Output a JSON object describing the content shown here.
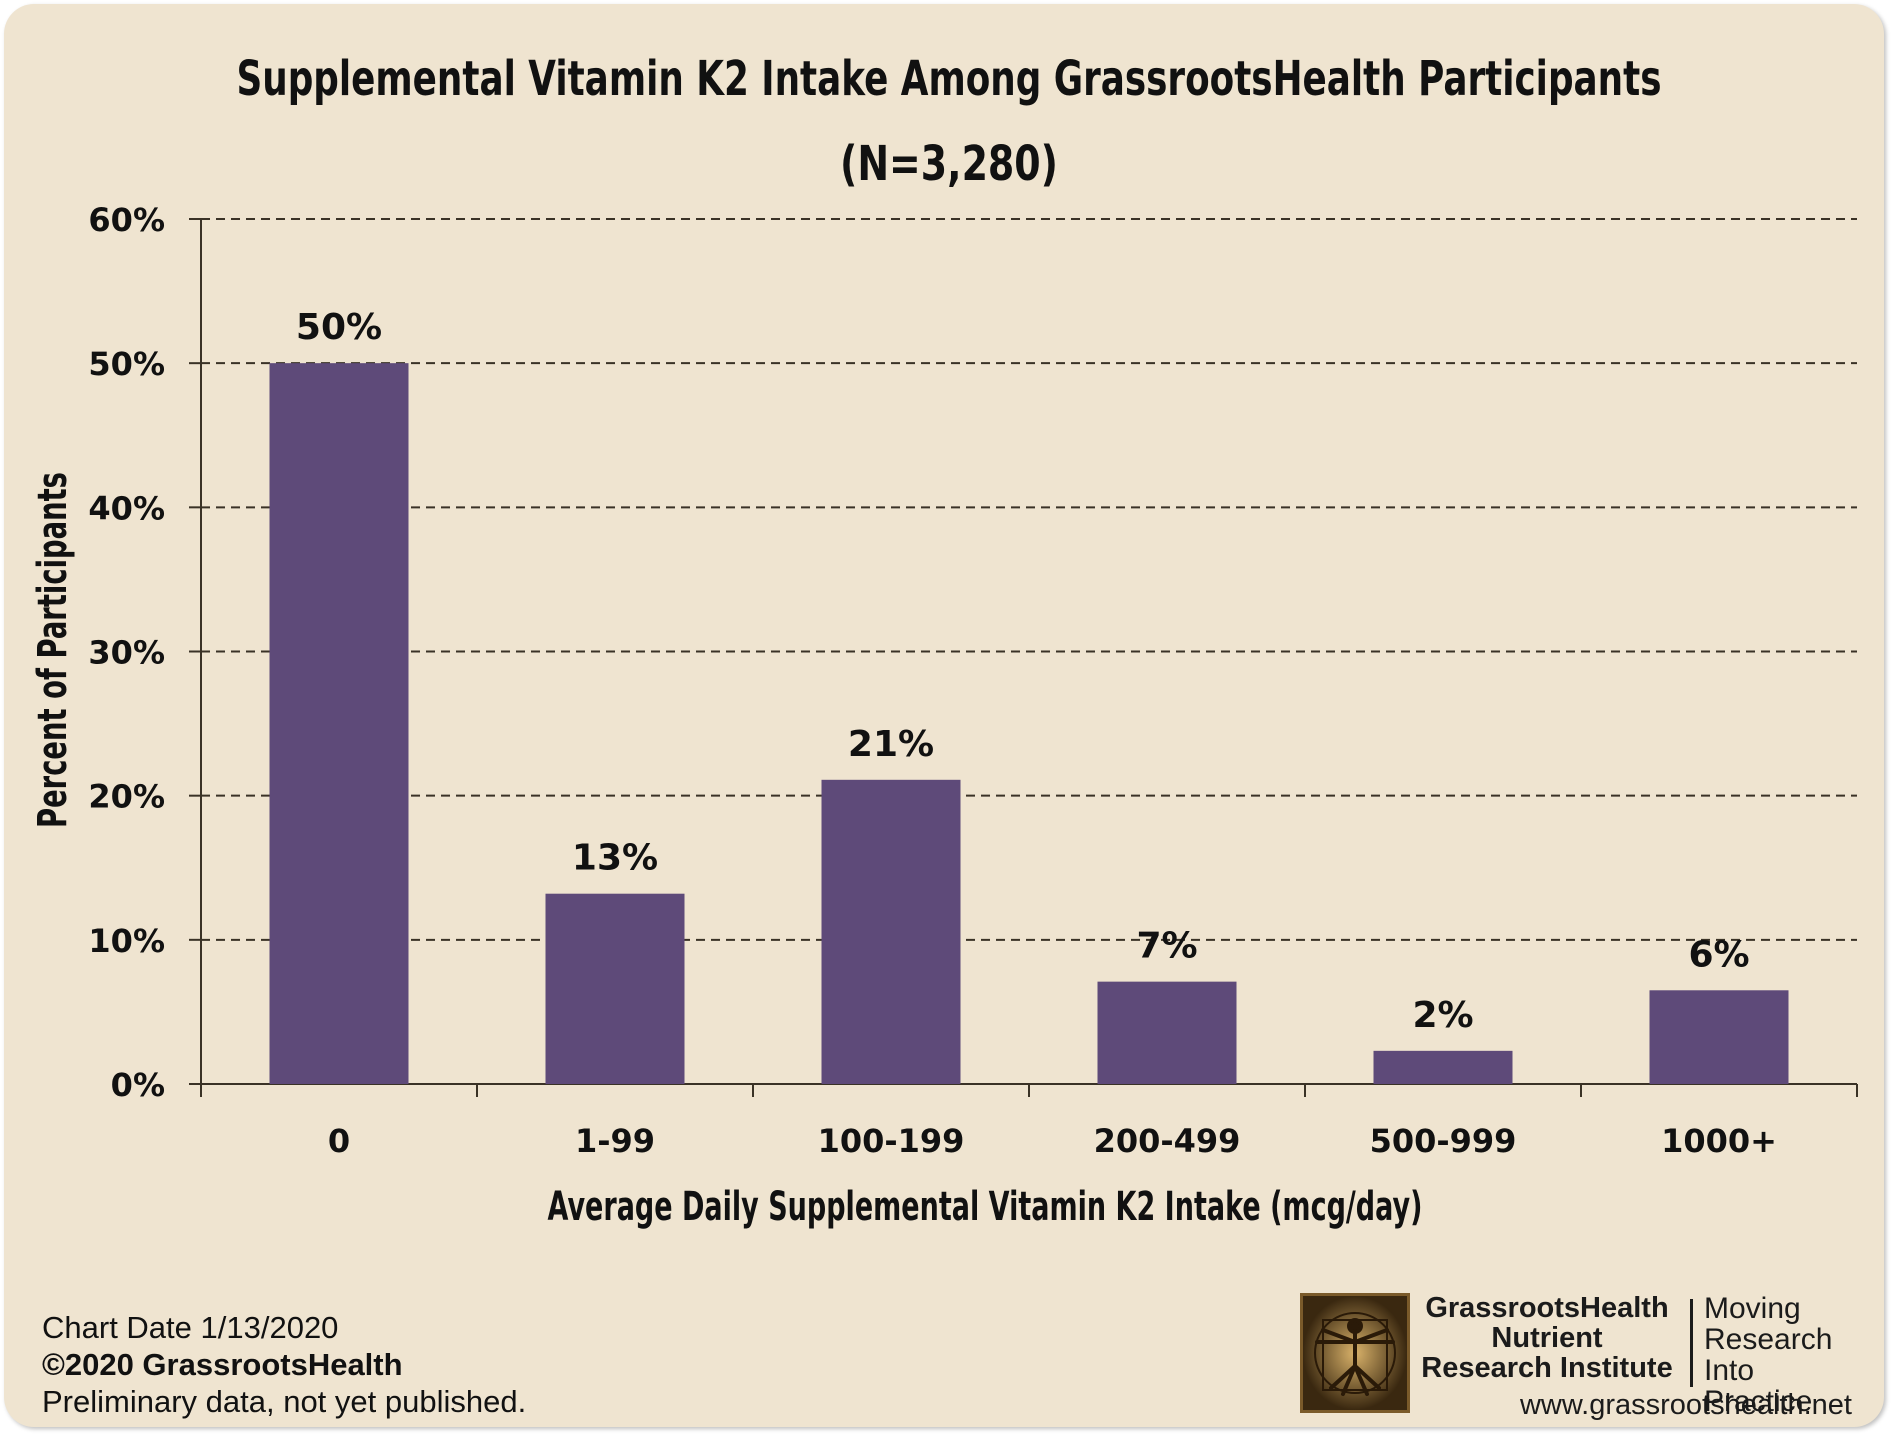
{
  "chart_data": {
    "type": "bar",
    "title": "Supplemental Vitamin K2 Intake Among GrassrootsHealth Participants",
    "subtitle": "(N=3,280)",
    "xlabel": "Average Daily Supplemental Vitamin K2 Intake (mcg/day)",
    "ylabel": "Percent of Participants",
    "categories": [
      "0",
      "1-99",
      "100-199",
      "200-499",
      "500-999",
      "1000+"
    ],
    "values": [
      50,
      13.2,
      21.1,
      7.1,
      2.3,
      6.5
    ],
    "data_labels": [
      "50%",
      "13%",
      "21%",
      "7%",
      "2%",
      "6%"
    ],
    "ylim": [
      0,
      60
    ],
    "yticks": [
      0,
      10,
      20,
      30,
      40,
      50,
      60
    ],
    "ytick_labels": [
      "0%",
      "10%",
      "20%",
      "30%",
      "40%",
      "50%",
      "60%"
    ],
    "grid": "horizontal dashed",
    "legend": "none",
    "bar_color": "#5e4a79",
    "background_color": "#efe4d0"
  },
  "footer": {
    "chart_date": "Chart Date 1/13/2020",
    "copyright": "©2020 GrassrootsHealth",
    "note": "Preliminary data, not yet published."
  },
  "brand": {
    "logo_icon": "vitruvian-man-icon",
    "name_lines": [
      "GrassrootsHealth",
      "Nutrient",
      "Research Institute"
    ],
    "tagline_lines": [
      "Moving",
      "Research",
      "Into Practice"
    ],
    "url": "www.grassrootshealth.net"
  }
}
